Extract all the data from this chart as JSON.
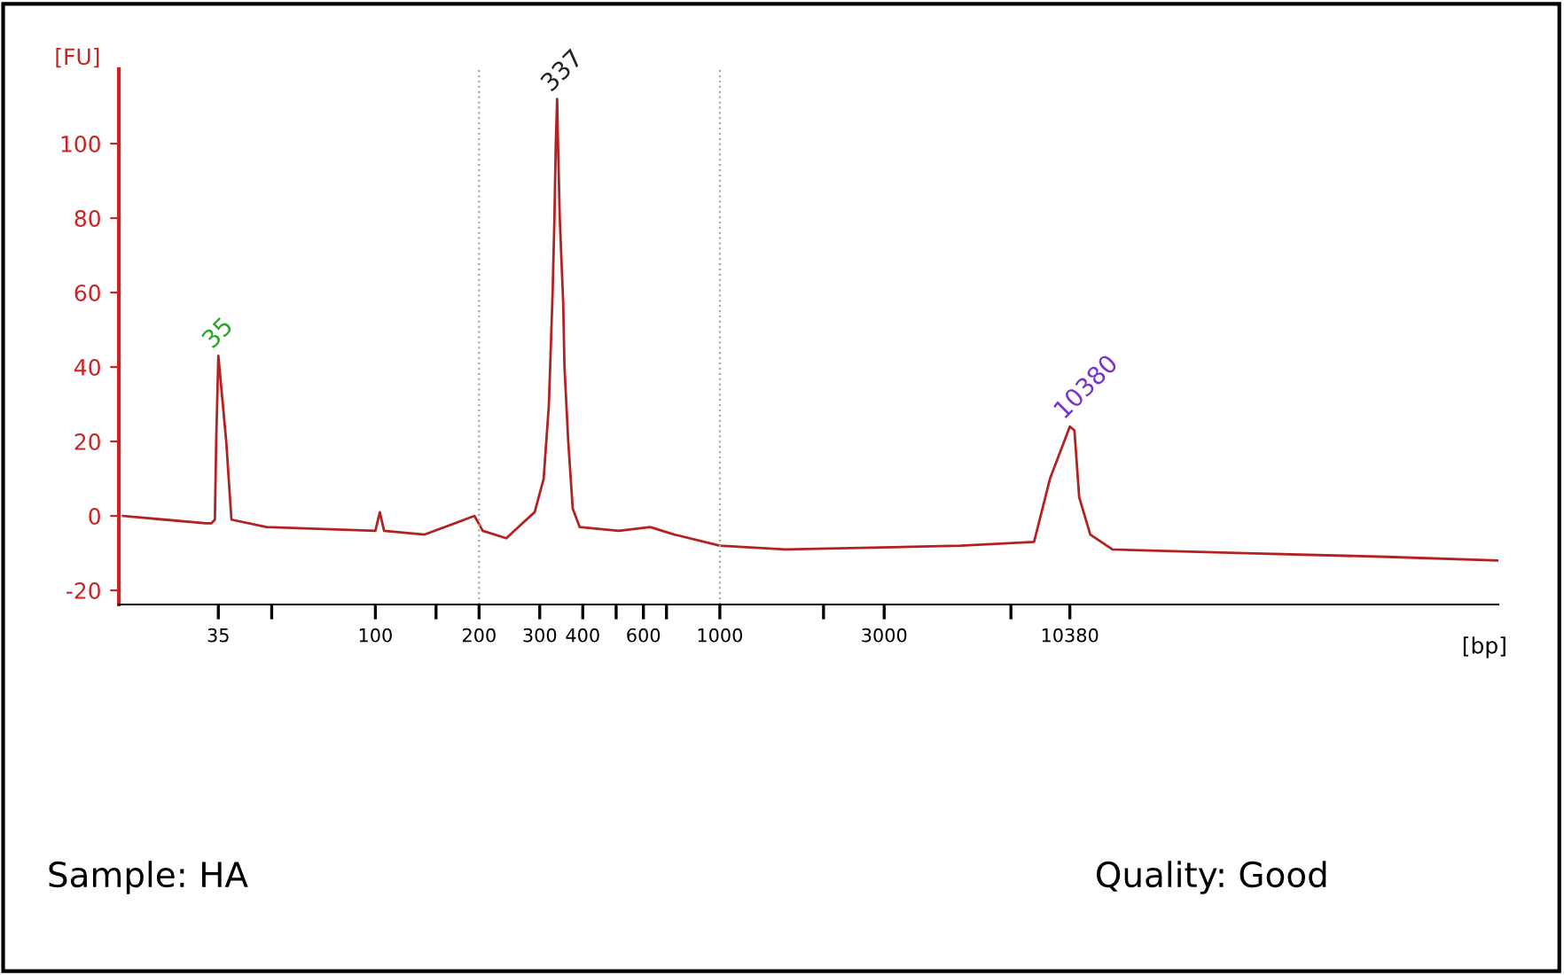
{
  "chart_data": {
    "type": "line",
    "xlabel": "[bp]",
    "ylabel": "[FU]",
    "log": "x",
    "x": [
      18.5,
      24.4,
      32.2,
      33.4,
      34.2,
      34.5,
      35,
      36.9,
      38.2,
      48.3,
      100,
      103,
      106,
      139,
      194,
      205,
      240,
      267,
      290,
      308,
      319,
      327,
      331,
      334,
      337,
      339,
      343,
      351,
      354,
      363,
      374,
      392,
      509,
      628,
      738,
      1000,
      1550,
      5000,
      8170,
      9090,
      10380,
      10700,
      11050,
      11900,
      13800,
      33730,
      86300,
      181000
    ],
    "series": [
      {
        "color": "#b22222",
        "values": [
          0,
          -1,
          -2,
          -2,
          -1,
          20,
          43,
          20,
          -1,
          -3,
          -4,
          1,
          -4,
          -5,
          0,
          -4,
          -6,
          -2,
          1,
          10,
          30,
          60,
          80,
          100,
          112,
          100,
          80,
          57,
          40,
          20,
          2,
          -3,
          -4,
          -3,
          -5,
          -8,
          -9,
          -8,
          -7,
          10,
          24,
          23,
          5,
          -5,
          -9,
          -10,
          -11,
          -12
        ]
      }
    ],
    "xlim": [
      18,
      182000
    ],
    "ylim": [
      -23.8,
      120
    ],
    "xticks": [
      35,
      {
        "value": 50,
        "label": null
      },
      100,
      {
        "value": 150,
        "label": null
      },
      200,
      300,
      400,
      {
        "value": 500,
        "label": null
      },
      600,
      {
        "value": 700,
        "label": null
      },
      1000,
      {
        "value": 2000,
        "label": null
      },
      3000,
      {
        "value": 7000,
        "label": null
      },
      10380
    ],
    "yticks": [
      -20,
      0,
      20,
      40,
      60,
      80,
      100
    ],
    "ref_lines": [
      {
        "axis": "x",
        "value": 200,
        "line_style": "dotted",
        "color": "#aaaaaa"
      },
      {
        "axis": "x",
        "value": 1000,
        "line_style": "dotted",
        "color": "#aaaaaa"
      }
    ],
    "annotations": [
      {
        "text": "35",
        "x": 35,
        "y": 43
      },
      {
        "text": "337",
        "x": 337,
        "y": 112
      },
      {
        "text": "10380",
        "x": 10380,
        "y": 24
      },
      "Sample: HA",
      "Quality: Good"
    ],
    "grid": false,
    "legend": false,
    "marker": "none",
    "line_style": "solid"
  }
}
